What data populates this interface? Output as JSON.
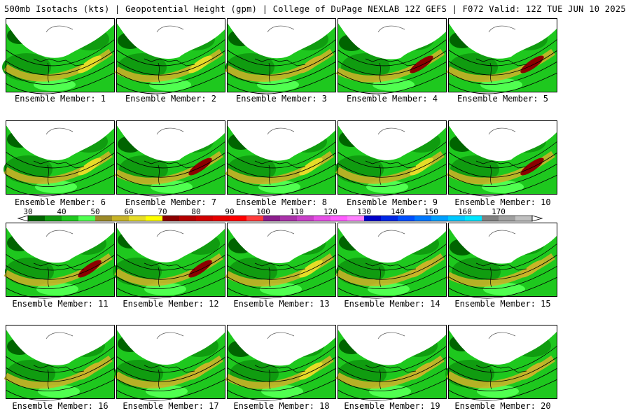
{
  "header": {
    "title": "500mb Isotachs (kts) | Geopotential Height (gpm) | College of DuPage NEXLAB   12Z GEFS | F072 Valid: 12Z TUE JUN 10 2025"
  },
  "colorbar": {
    "labels": [
      "30",
      "40",
      "50",
      "60",
      "70",
      "80",
      "90",
      "100",
      "110",
      "120",
      "130",
      "140",
      "150",
      "160",
      "170"
    ],
    "colors": [
      "#006400",
      "#109c10",
      "#1ec81e",
      "#50ff50",
      "#9c8a28",
      "#c8b428",
      "#e6dc28",
      "#ffff00",
      "#8b0000",
      "#b40000",
      "#d00000",
      "#e60000",
      "#ff0000",
      "#ff3c3c",
      "#8c1e8c",
      "#aa32aa",
      "#c840c8",
      "#e650e6",
      "#ff5cff",
      "#ff80ff",
      "#0000c8",
      "#0028e6",
      "#0050ff",
      "#0078ff",
      "#00a0ff",
      "#00c8ff",
      "#00e6ff",
      "#808080",
      "#a0a0a0",
      "#c0c0c0"
    ]
  },
  "members": [
    {
      "label": "Ensemble Member: 1",
      "peak": "yellow"
    },
    {
      "label": "Ensemble Member: 2",
      "peak": "yellow"
    },
    {
      "label": "Ensemble Member: 3",
      "peak": "olive"
    },
    {
      "label": "Ensemble Member: 4",
      "peak": "red"
    },
    {
      "label": "Ensemble Member: 5",
      "peak": "red"
    },
    {
      "label": "Ensemble Member: 6",
      "peak": "yellow"
    },
    {
      "label": "Ensemble Member: 7",
      "peak": "red"
    },
    {
      "label": "Ensemble Member: 8",
      "peak": "yellow"
    },
    {
      "label": "Ensemble Member: 9",
      "peak": "yellow"
    },
    {
      "label": "Ensemble Member: 10",
      "peak": "red"
    },
    {
      "label": "Ensemble Member: 11",
      "peak": "red"
    },
    {
      "label": "Ensemble Member: 12",
      "peak": "red"
    },
    {
      "label": "Ensemble Member: 13",
      "peak": "yellow"
    },
    {
      "label": "Ensemble Member: 14",
      "peak": "olive"
    },
    {
      "label": "Ensemble Member: 15",
      "peak": "olive"
    },
    {
      "label": "Ensemble Member: 16",
      "peak": "olive"
    },
    {
      "label": "Ensemble Member: 17",
      "peak": "olive"
    },
    {
      "label": "Ensemble Member: 18",
      "peak": "yellow"
    },
    {
      "label": "Ensemble Member: 19",
      "peak": "olive"
    },
    {
      "label": "Ensemble Member: 20",
      "peak": "olive"
    }
  ]
}
